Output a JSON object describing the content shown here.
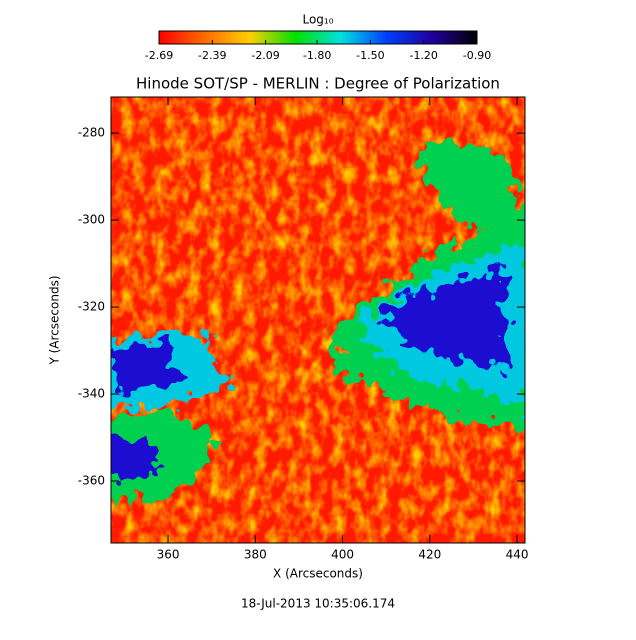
{
  "chart_data": {
    "type": "heatmap",
    "title": "Hinode SOT/SP - MERLIN : Degree of Polarization",
    "x_label": "X (Arcseconds)",
    "y_label": "Y (Arcseconds)",
    "xlim": [
      346.93,
      441.83
    ],
    "ylim": [
      -374.25,
      -271.7
    ],
    "xticks": [
      360,
      380,
      400,
      420,
      440
    ],
    "yticks": [
      -360,
      -340,
      -320,
      -300,
      -280
    ],
    "colorbar": {
      "title": "Log₁₀",
      "lim": [
        -2.69,
        -0.9
      ],
      "ticks": [
        -2.69,
        -2.39,
        -2.09,
        {
          "value": -1.8,
          "label": "-1.80"
        },
        {
          "value": -1.5,
          "label": "-1.50"
        },
        {
          "value": -1.2,
          "label": "-1.20"
        },
        {
          "value": -0.9,
          "label": "-0.90"
        }
      ],
      "colormap": [
        "#ff0000",
        "#ff6a00",
        "#ffd000",
        "#00e000",
        "#00e0e0",
        "#0040ff",
        "#2000a0",
        "#000000"
      ]
    },
    "footer": "18-Jul-2013 10:35:06.174"
  }
}
